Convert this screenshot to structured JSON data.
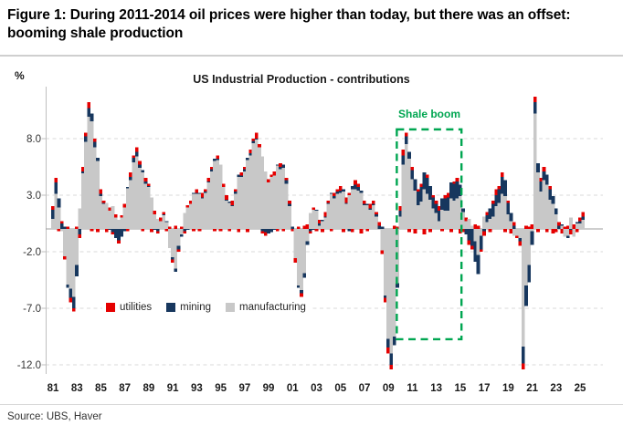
{
  "figure": {
    "title": "Figure 1: During 2011-2014 oil prices were higher than today, but there was an offset: booming shale production",
    "source": "Source: UBS, Haver"
  },
  "chart_data": {
    "type": "bar",
    "stacked": true,
    "title": "US Industrial Production - contributions",
    "y_axis_label": "%",
    "frequency": "quarterly",
    "x_start_year": 1981,
    "x_end": "2025 Q2",
    "ylim": [
      -12.6,
      12.2
    ],
    "grid": "dashed-horizontal",
    "legend_position": "inside-lower-left",
    "y_ticks": [
      8.0,
      3.0,
      -2.0,
      -7.0,
      -12.0
    ],
    "y_tick_labels": [
      "8.0",
      "3.0",
      "-2.0",
      "-7.0",
      "-12.0"
    ],
    "x_tick_labels": [
      "81",
      "83",
      "85",
      "87",
      "89",
      "91",
      "93",
      "95",
      "97",
      "99",
      "01",
      "03",
      "05",
      "07",
      "09",
      "11",
      "13",
      "15",
      "17",
      "19",
      "21",
      "23",
      "25"
    ],
    "annotation": {
      "label": "Shale boom",
      "color": "#00A651",
      "year_from": 2009.85,
      "year_to": 2015.25,
      "value_top": 8.8,
      "value_bottom": -9.75
    },
    "stack_order": [
      "manufacturing",
      "mining",
      "utilities"
    ],
    "series": [
      {
        "name": "utilities",
        "color": "#E50000",
        "values": [
          0.3,
          0.4,
          -0.2,
          0.2,
          -0.3,
          0.2,
          -0.4,
          -0.3,
          0.2,
          -0.3,
          0.4,
          0.3,
          0.5,
          -0.2,
          0.3,
          -0.3,
          0.4,
          0.2,
          -0.3,
          0.3,
          -0.2,
          0.3,
          -0.3,
          0.2,
          0.3,
          -0.2,
          0.4,
          0.2,
          0.4,
          0.3,
          -0.2,
          0.3,
          0.2,
          -0.3,
          0.3,
          -0.2,
          0.3,
          0.2,
          -0.2,
          0.2,
          -0.3,
          0.3,
          -0.2,
          0.2,
          -0.2,
          0.2,
          0.3,
          -0.2,
          0.3,
          -0.2,
          0.4,
          0.2,
          0.3,
          0.2,
          -0.2,
          0.3,
          -0.2,
          0.3,
          0.4,
          -0.2,
          0.4,
          0.2,
          -0.3,
          0.3,
          0.2,
          -0.3,
          0.3,
          0.2,
          0.5,
          0.3,
          -0.2,
          -0.3,
          0.3,
          0.2,
          0.4,
          -0.2,
          0.3,
          -0.2,
          0.2,
          0.3,
          -0.2,
          -0.4,
          0.2,
          -0.3,
          0.3,
          0.4,
          -0.2,
          0.2,
          -0.2,
          0.3,
          -0.3,
          0.4,
          0.2,
          -0.2,
          0.3,
          0.2,
          0.4,
          -0.3,
          0.5,
          0.2,
          -0.3,
          0.4,
          0.3,
          -0.4,
          0.3,
          -0.2,
          0.4,
          0.3,
          0.2,
          0.3,
          -0.3,
          -0.4,
          -0.5,
          -0.4,
          0.3,
          0.2,
          0.4,
          0.5,
          0.3,
          -0.3,
          0.3,
          -0.4,
          0.2,
          0.3,
          -0.5,
          0.3,
          -0.3,
          0.2,
          0.3,
          0.4,
          -0.2,
          0.3,
          0.4,
          -0.3,
          0.2,
          0.3,
          -0.4,
          -0.3,
          0.3,
          -0.4,
          -0.3,
          0.4,
          0.3,
          -0.2,
          -0.4,
          0.3,
          -0.3,
          0.3,
          0.5,
          0.3,
          0.4,
          -0.3,
          0.2,
          -0.4,
          0.3,
          -0.2,
          -0.4,
          -0.5,
          0.3,
          0.2,
          0.4,
          0.5,
          -0.3,
          0.3,
          0.4,
          -0.3,
          0.3,
          -0.4,
          -0.3,
          0.3,
          -0.4,
          0.2,
          0.3,
          -0.4,
          0.4,
          -0.3,
          0.3,
          0.4
        ]
      },
      {
        "name": "mining",
        "color": "#17375E",
        "values": [
          0.8,
          1.0,
          0.8,
          0.5,
          0.2,
          -0.3,
          -0.8,
          -1.0,
          -1.0,
          -0.5,
          0.2,
          0.5,
          0.8,
          0.7,
          0.5,
          0.3,
          0.2,
          0.1,
          0.0,
          -0.1,
          -0.3,
          -0.8,
          -1.0,
          -0.7,
          -0.2,
          0.1,
          0.3,
          0.4,
          0.4,
          0.3,
          0.2,
          0.2,
          0.1,
          0.0,
          -0.1,
          -0.2,
          0.0,
          0.1,
          0.1,
          0.0,
          -0.2,
          -0.3,
          -0.3,
          -0.2,
          -0.2,
          -0.1,
          0.0,
          0.1,
          0.1,
          0.1,
          0.1,
          0.1,
          0.1,
          0.2,
          0.2,
          0.1,
          0.0,
          0.0,
          0.1,
          0.1,
          0.1,
          0.2,
          0.2,
          0.1,
          0.2,
          0.2,
          0.2,
          0.2,
          0.1,
          0.0,
          -0.2,
          -0.3,
          -0.4,
          -0.3,
          -0.1,
          0.1,
          0.2,
          0.3,
          0.3,
          0.2,
          0.2,
          0.0,
          -0.2,
          -0.3,
          -0.4,
          -0.3,
          -0.2,
          -0.1,
          0.1,
          0.2,
          0.1,
          0.1,
          0.1,
          0.1,
          0.2,
          0.2,
          0.2,
          0.2,
          0.1,
          -0.2,
          0.3,
          0.4,
          0.3,
          0.2,
          0.1,
          0.1,
          0.1,
          0.1,
          0.2,
          0.3,
          0.2,
          -0.2,
          -0.8,
          -1.0,
          -0.8,
          -0.4,
          0.5,
          0.8,
          0.7,
          0.6,
          0.8,
          1.0,
          1.2,
          1.3,
          1.5,
          1.4,
          1.2,
          1.0,
          0.8,
          0.9,
          1.0,
          1.1,
          1.2,
          1.4,
          1.5,
          1.5,
          1.0,
          0.3,
          -0.5,
          -1.0,
          -1.5,
          -1.8,
          -1.7,
          -1.2,
          -0.2,
          0.6,
          0.9,
          1.1,
          1.0,
          1.2,
          1.5,
          1.4,
          1.0,
          0.7,
          0.3,
          0.0,
          -0.3,
          -1.5,
          -1.8,
          -1.5,
          -1.2,
          1.0,
          0.8,
          0.9,
          0.8,
          0.9,
          0.9,
          0.7,
          0.5,
          0.3,
          0.1,
          0.0,
          -0.2,
          -0.1,
          0.0,
          0.1,
          0.2,
          0.3
        ]
      },
      {
        "name": "manufacturing",
        "color": "#C8C8C8",
        "values": [
          0.9,
          3.1,
          1.9,
          -0.2,
          -2.4,
          -4.9,
          -5.3,
          -6.0,
          -3.2,
          1.8,
          4.9,
          7.7,
          9.9,
          9.5,
          7.2,
          6.0,
          2.9,
          2.2,
          2.3,
          1.6,
          2.0,
          1.0,
          0.8,
          1.0,
          1.9,
          3.6,
          4.3,
          5.9,
          6.4,
          5.4,
          5.0,
          4.0,
          3.7,
          2.8,
          1.3,
          0.9,
          0.7,
          1.2,
          0.6,
          -1.7,
          -2.5,
          -3.5,
          -1.5,
          -0.5,
          1.4,
          1.9,
          2.2,
          3.1,
          3.1,
          3.1,
          2.7,
          3.2,
          4.1,
          5.1,
          6.0,
          6.1,
          5.7,
          3.7,
          2.5,
          2.3,
          2.0,
          3.1,
          4.6,
          4.6,
          5.1,
          6.1,
          6.5,
          7.6,
          7.9,
          7.2,
          6.4,
          5.1,
          4.1,
          4.6,
          4.7,
          5.6,
          5.3,
          5.4,
          4.0,
          2.0,
          0.0,
          -2.6,
          -5.0,
          -5.4,
          -3.9,
          -1.1,
          1.4,
          1.7,
          1.6,
          0.3,
          0.7,
          1.0,
          2.2,
          3.1,
          2.7,
          3.1,
          3.2,
          3.3,
          2.2,
          3.0,
          3.5,
          3.5,
          3.4,
          3.2,
          2.1,
          2.1,
          1.7,
          2.1,
          1.1,
          -0.1,
          -1.9,
          -5.9,
          -9.7,
          -11.0,
          -9.5,
          -4.8,
          1.1,
          5.7,
          7.5,
          6.2,
          4.4,
          3.4,
          2.1,
          2.4,
          3.5,
          3.1,
          2.6,
          1.8,
          1.4,
          0.7,
          1.7,
          1.6,
          1.6,
          2.7,
          2.5,
          2.7,
          2.9,
          1.5,
          0.7,
          0.9,
          0.3,
          -1.1,
          -2.3,
          -0.6,
          1.1,
          0.6,
          0.9,
          1.1,
          2.0,
          2.3,
          3.1,
          2.9,
          1.3,
          0.7,
          -0.6,
          -0.6,
          -0.8,
          -10.4,
          -5.0,
          -3.2,
          -0.2,
          10.2,
          5.0,
          3.3,
          4.3,
          3.9,
          2.6,
          2.2,
          1.3,
          -0.1,
          0.3,
          -0.7,
          -0.6,
          1.0,
          -0.7,
          0.5,
          0.5,
          0.8
        ]
      }
    ]
  }
}
